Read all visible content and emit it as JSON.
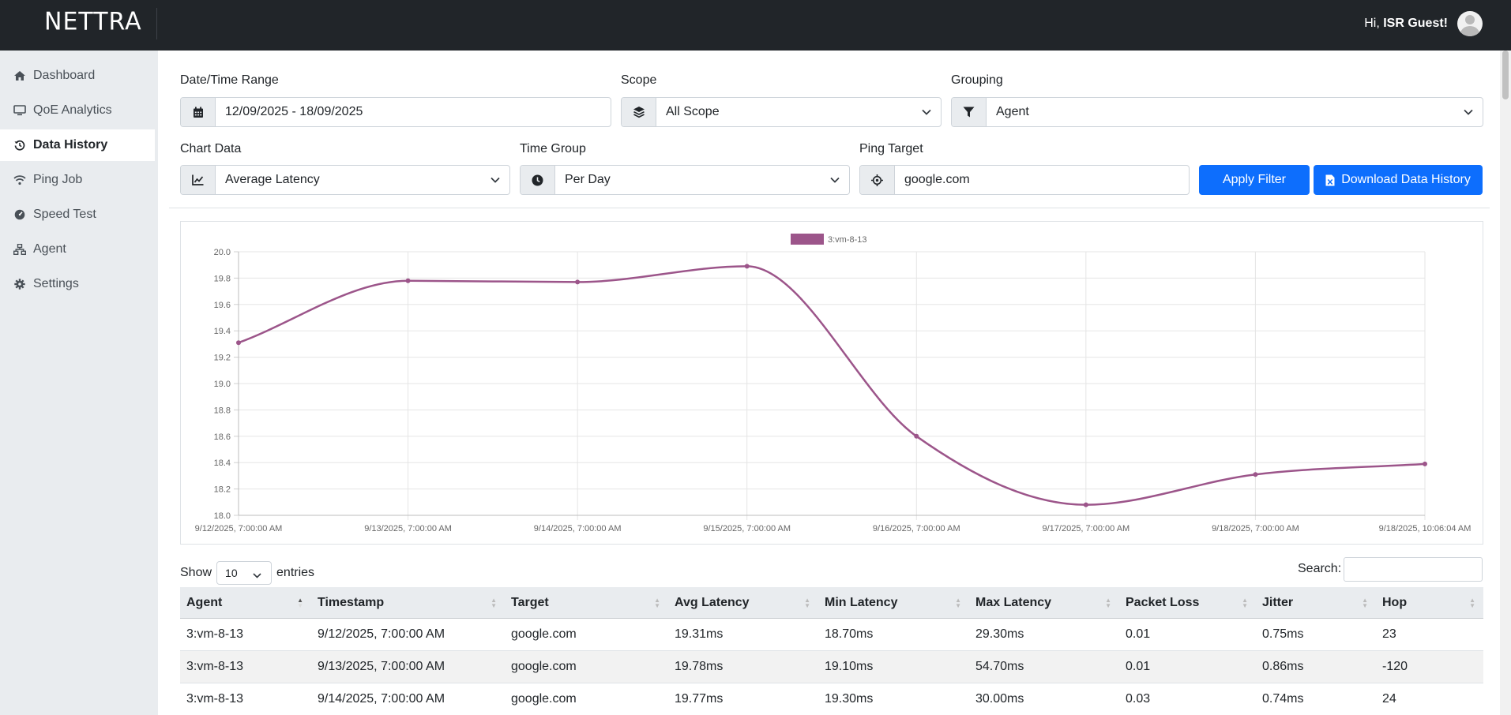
{
  "header": {
    "logo": "NETTRA",
    "greeting_prefix": "Hi, ",
    "user_name": "ISR Guest!"
  },
  "sidebar": {
    "items": [
      {
        "label": "Dashboard",
        "icon": "home-icon"
      },
      {
        "label": "QoE Analytics",
        "icon": "monitor-icon"
      },
      {
        "label": "Data History",
        "icon": "history-icon",
        "active": true
      },
      {
        "label": "Ping Job",
        "icon": "wifi-icon"
      },
      {
        "label": "Speed Test",
        "icon": "gauge-icon"
      },
      {
        "label": "Agent",
        "icon": "sitemap-icon"
      },
      {
        "label": "Settings",
        "icon": "gear-icon"
      }
    ]
  },
  "filters": {
    "date_range": {
      "label": "Date/Time Range",
      "value": "12/09/2025 - 18/09/2025",
      "icon": "calendar-icon"
    },
    "scope": {
      "label": "Scope",
      "value": "All Scope",
      "icon": "layers-icon"
    },
    "grouping": {
      "label": "Grouping",
      "value": "Agent",
      "icon": "filter-icon"
    },
    "chart_data": {
      "label": "Chart Data",
      "value": "Average Latency",
      "icon": "chart-line-icon"
    },
    "time_group": {
      "label": "Time Group",
      "value": "Per Day",
      "icon": "clock-icon"
    },
    "ping_target": {
      "label": "Ping Target",
      "value": "google.com",
      "icon": "crosshair-icon"
    },
    "apply_label": "Apply Filter",
    "download_label": "Download Data History"
  },
  "colors": {
    "accent": "#0d6efd",
    "series": "#9c558a",
    "topbar": "#212529"
  },
  "chart_data": {
    "type": "line",
    "x": [
      "9/12/2025, 7:00:00 AM",
      "9/13/2025, 7:00:00 AM",
      "9/14/2025, 7:00:00 AM",
      "9/15/2025, 7:00:00 AM",
      "9/16/2025, 7:00:00 AM",
      "9/17/2025, 7:00:00 AM",
      "9/18/2025, 7:00:00 AM",
      "9/18/2025, 10:06:04 AM"
    ],
    "series": [
      {
        "name": "3:vm-8-13",
        "values": [
          19.31,
          19.78,
          19.77,
          19.89,
          18.6,
          18.08,
          18.31,
          18.39
        ]
      }
    ],
    "ylim": [
      18.0,
      20.0
    ],
    "yticks": [
      "20.0",
      "19.8",
      "19.6",
      "19.4",
      "19.2",
      "19.0",
      "18.8",
      "18.6",
      "18.4",
      "18.2",
      "18.0"
    ],
    "legend": "top-center",
    "grid": true
  },
  "table_controls": {
    "show_label": "Show",
    "page_length": "10",
    "entries_label": "entries",
    "search_label": "Search:"
  },
  "table": {
    "columns": [
      "Agent",
      "Timestamp",
      "Target",
      "Avg Latency",
      "Min Latency",
      "Max Latency",
      "Packet Loss",
      "Jitter",
      "Hop"
    ],
    "rows": [
      [
        "3:vm-8-13",
        "9/12/2025, 7:00:00 AM",
        "google.com",
        "19.31ms",
        "18.70ms",
        "29.30ms",
        "0.01",
        "0.75ms",
        "23"
      ],
      [
        "3:vm-8-13",
        "9/13/2025, 7:00:00 AM",
        "google.com",
        "19.78ms",
        "19.10ms",
        "54.70ms",
        "0.01",
        "0.86ms",
        "-120"
      ],
      [
        "3:vm-8-13",
        "9/14/2025, 7:00:00 AM",
        "google.com",
        "19.77ms",
        "19.30ms",
        "30.00ms",
        "0.03",
        "0.74ms",
        "24"
      ]
    ]
  }
}
